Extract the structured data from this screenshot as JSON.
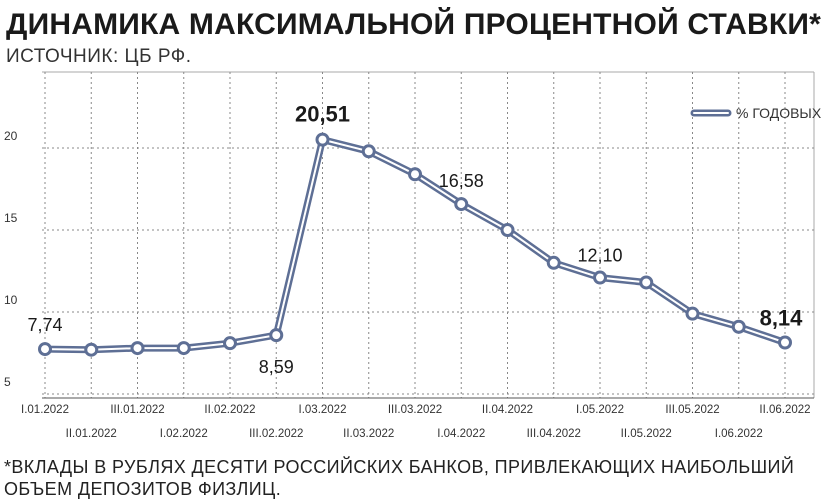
{
  "title": "ДИНАМИКА МАКСИМАЛЬНОЙ ПРОЦЕНТНОЙ СТАВКИ*",
  "subtitle": "ИСТОЧНИК: ЦБ РФ.",
  "footnote": "*ВКЛАДЫ В РУБЛЯХ ДЕСЯТИ РОССИЙСКИХ БАНКОВ, ПРИВЛЕКАЮЩИХ НАИБОЛЬШИЙ\nОБЪЕМ ДЕПОЗИТОВ ФИЗЛИЦ.",
  "colors": {
    "line": "#5e6f95",
    "line_inner": "#ffffff",
    "grid": "#888888"
  },
  "chart_data": {
    "type": "line",
    "title": "ДИНАМИКА МАКСИМАЛЬНОЙ ПРОЦЕНТНОЙ СТАВКИ*",
    "xlabel": "",
    "ylabel": "",
    "ylim": [
      5,
      25
    ],
    "yticks": [
      5,
      10,
      15,
      20
    ],
    "grid": true,
    "legend_position": "top-right",
    "categories": [
      "I.01.2022",
      "II.01.2022",
      "III.01.2022",
      "I.02.2022",
      "II.02.2022",
      "III.02.2022",
      "I.03.2022",
      "II.03.2022",
      "III.03.2022",
      "I.04.2022",
      "II.04.2022",
      "III.04.2022",
      "I.05.2022",
      "II.05.2022",
      "III.05.2022",
      "I.06.2022",
      "II.06.2022"
    ],
    "series": [
      {
        "name": "% ГОДОВЫХ",
        "values": [
          7.74,
          7.7,
          7.8,
          7.8,
          8.1,
          8.59,
          20.51,
          19.8,
          18.4,
          16.58,
          15.0,
          13.0,
          12.1,
          11.8,
          9.9,
          9.1,
          8.14
        ]
      }
    ],
    "data_labels": [
      {
        "index": 0,
        "text": "7,74",
        "emphasis": false
      },
      {
        "index": 5,
        "text": "8,59",
        "emphasis": false
      },
      {
        "index": 6,
        "text": "20,51",
        "emphasis": true
      },
      {
        "index": 9,
        "text": "16,58",
        "emphasis": false
      },
      {
        "index": 12,
        "text": "12,10",
        "emphasis": false
      },
      {
        "index": 16,
        "text": "8,14",
        "emphasis": true
      }
    ]
  }
}
